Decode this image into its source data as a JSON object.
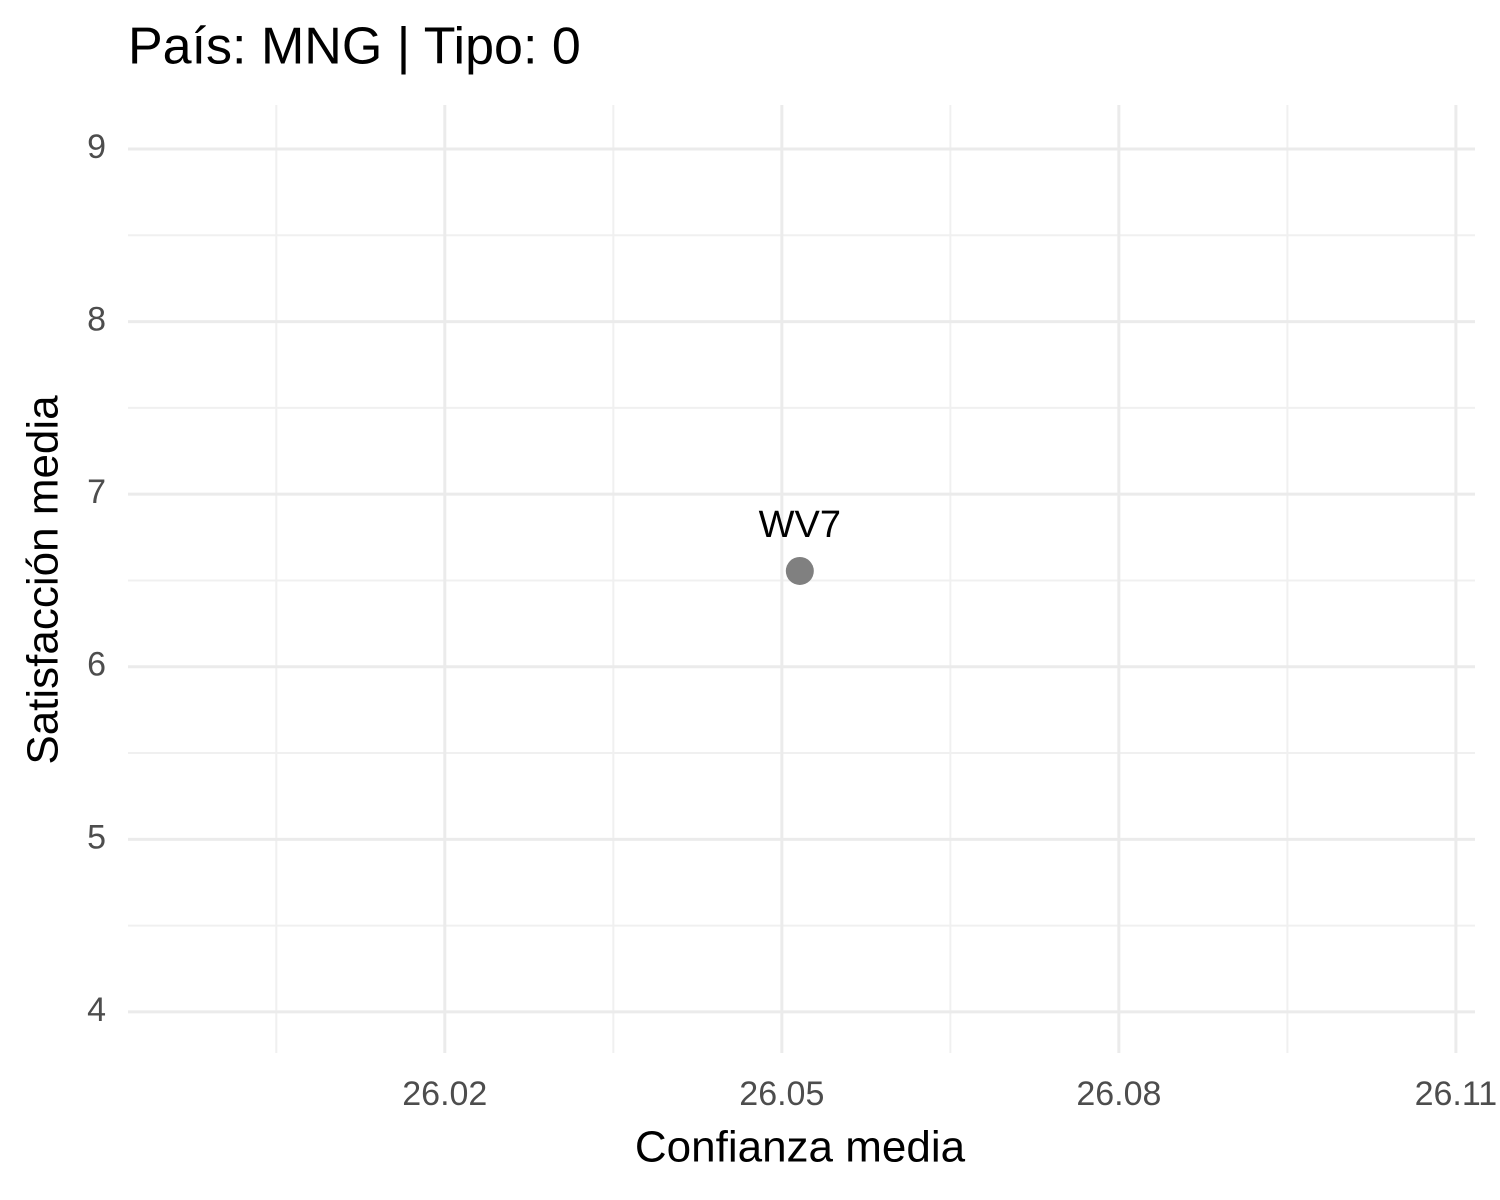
{
  "chart_data": {
    "type": "scatter",
    "title": "País: MNG | Tipo: 0",
    "x_label": "Confianza media",
    "y_label": "Satisfacción media",
    "series": [
      {
        "x": [
          26.0516
        ],
        "values": [
          6.555
        ],
        "labels": [
          "WV7"
        ],
        "color": "#808080"
      }
    ],
    "xlim": [
      25.9918,
      26.1117
    ],
    "xticks": [
      26.02,
      26.05,
      26.08,
      26.11
    ],
    "ylim": [
      3.762,
      9.255
    ],
    "yticks": [
      4,
      5,
      6,
      7,
      8,
      9
    ],
    "grid": true
  }
}
